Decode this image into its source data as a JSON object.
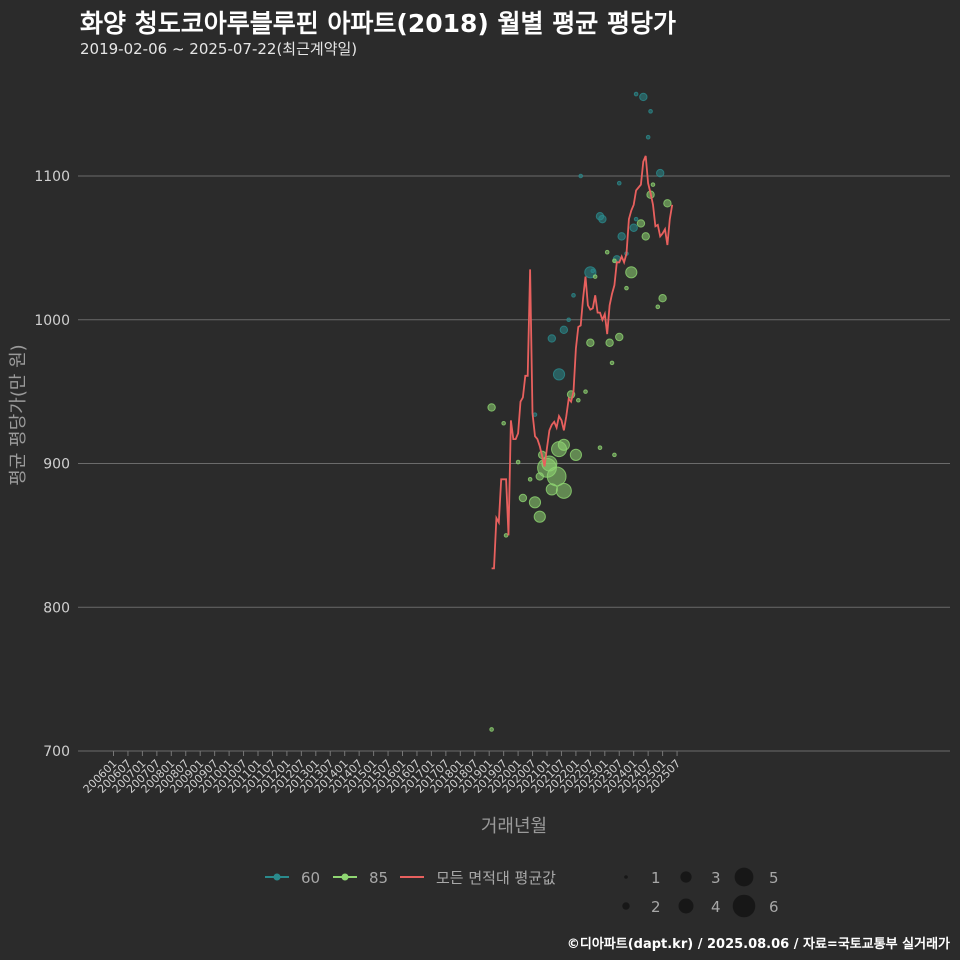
{
  "title": "화양 청도코아루블루핀 아파트(2018) 월별 평균 평당가",
  "subtitle": "2019-02-06 ~ 2025-07-22(최근계약일)",
  "footer": "©디아파트(dapt.kr) / 2025.08.06 / 자료=국토교통부 실거래가",
  "colors": {
    "background": "#2b2b2b",
    "grid": "#6b6b6b",
    "series_60": "#2a8a8c",
    "series_85": "#8fd672",
    "avg_line": "#e8605e"
  },
  "chart_data": {
    "type": "scatter",
    "xlabel": "거래년월",
    "ylabel": "평균 평당가(만 원)",
    "ylim": [
      700,
      1140
    ],
    "yticks": [
      700,
      800,
      900,
      1000,
      1100
    ],
    "x_start": "2006-01",
    "x_end": "2025-09",
    "x_tick_labels": [
      "200601",
      "200607",
      "200701",
      "200707",
      "200801",
      "200807",
      "200901",
      "200907",
      "201001",
      "201007",
      "201101",
      "201107",
      "201201",
      "201207",
      "201301",
      "201307",
      "201401",
      "201407",
      "201501",
      "201507",
      "201601",
      "201607",
      "201701",
      "201707",
      "201801",
      "201807",
      "201901",
      "201907",
      "202001",
      "202007",
      "202101",
      "202107",
      "202201",
      "202207",
      "202301",
      "202307",
      "202401",
      "202407",
      "202501",
      "202507"
    ],
    "legend": {
      "series": [
        {
          "key": "60",
          "label": "60"
        },
        {
          "key": "85",
          "label": "85"
        },
        {
          "key": "avg",
          "label": "모든 면적대 평균값"
        }
      ],
      "size_labels": [
        "1",
        "2",
        "3",
        "4",
        "5",
        "6"
      ]
    },
    "series_line": {
      "name": "모든 면적대 평균값",
      "points": [
        [
          "2019-02",
          827
        ],
        [
          "2019-03",
          827
        ],
        [
          "2019-04",
          862
        ],
        [
          "2019-05",
          859
        ],
        [
          "2019-06",
          889
        ],
        [
          "2019-07",
          889
        ],
        [
          "2019-08",
          889
        ],
        [
          "2019-09",
          850
        ],
        [
          "2019-10",
          930
        ],
        [
          "2019-11",
          917
        ],
        [
          "2019-12",
          917
        ],
        [
          "2020-01",
          921
        ],
        [
          "2020-02",
          943
        ],
        [
          "2020-03",
          946
        ],
        [
          "2020-04",
          961
        ],
        [
          "2020-05",
          961
        ],
        [
          "2020-06",
          1035
        ],
        [
          "2020-07",
          935
        ],
        [
          "2020-08",
          919
        ],
        [
          "2020-09",
          917
        ],
        [
          "2020-10",
          912
        ],
        [
          "2020-11",
          905
        ],
        [
          "2020-12",
          898
        ],
        [
          "2021-01",
          911
        ],
        [
          "2021-02",
          923
        ],
        [
          "2021-03",
          927
        ],
        [
          "2021-04",
          929
        ],
        [
          "2021-05",
          925
        ],
        [
          "2021-06",
          933
        ],
        [
          "2021-07",
          930
        ],
        [
          "2021-08",
          923
        ],
        [
          "2021-09",
          933
        ],
        [
          "2021-10",
          945
        ],
        [
          "2021-11",
          943
        ],
        [
          "2021-12",
          950
        ],
        [
          "2022-01",
          980
        ],
        [
          "2022-02",
          995
        ],
        [
          "2022-03",
          996
        ],
        [
          "2022-04",
          1015
        ],
        [
          "2022-05",
          1030
        ],
        [
          "2022-06",
          1010
        ],
        [
          "2022-07",
          1007
        ],
        [
          "2022-08",
          1008
        ],
        [
          "2022-09",
          1017
        ],
        [
          "2022-10",
          1005
        ],
        [
          "2022-11",
          1005
        ],
        [
          "2022-12",
          1000
        ],
        [
          "2023-01",
          1004
        ],
        [
          "2023-02",
          990
        ],
        [
          "2023-03",
          1010
        ],
        [
          "2023-04",
          1018
        ],
        [
          "2023-05",
          1024
        ],
        [
          "2023-06",
          1040
        ],
        [
          "2023-07",
          1040
        ],
        [
          "2023-08",
          1044
        ],
        [
          "2023-09",
          1040
        ],
        [
          "2023-10",
          1046
        ],
        [
          "2023-11",
          1070
        ],
        [
          "2023-12",
          1076
        ],
        [
          "2024-01",
          1080
        ],
        [
          "2024-02",
          1090
        ],
        [
          "2024-03",
          1092
        ],
        [
          "2024-04",
          1094
        ],
        [
          "2024-05",
          1110
        ],
        [
          "2024-06",
          1114
        ],
        [
          "2024-07",
          1095
        ],
        [
          "2024-08",
          1088
        ],
        [
          "2024-09",
          1080
        ],
        [
          "2024-10",
          1065
        ],
        [
          "2024-11",
          1066
        ],
        [
          "2024-12",
          1058
        ],
        [
          "2025-01",
          1060
        ],
        [
          "2025-02",
          1063
        ],
        [
          "2025-03",
          1052
        ],
        [
          "2025-04",
          1070
        ],
        [
          "2025-05",
          1080
        ]
      ]
    },
    "series_scatter": [
      {
        "name": "60",
        "points": [
          [
            "2020-08",
            934,
            1
          ],
          [
            "2021-03",
            987,
            2
          ],
          [
            "2021-06",
            962,
            3
          ],
          [
            "2021-08",
            993,
            2
          ],
          [
            "2021-10",
            1000,
            1
          ],
          [
            "2021-12",
            1017,
            1
          ],
          [
            "2022-03",
            1100,
            1
          ],
          [
            "2022-07",
            1033,
            3
          ],
          [
            "2022-08",
            1034,
            1
          ],
          [
            "2022-11",
            1072,
            2
          ],
          [
            "2022-12",
            1070,
            2
          ],
          [
            "2023-06",
            1042,
            2
          ],
          [
            "2023-08",
            1058,
            2
          ],
          [
            "2023-10",
            1046,
            1
          ],
          [
            "2024-01",
            1064,
            2
          ],
          [
            "2024-02",
            1070,
            1
          ],
          [
            "2024-05",
            1155,
            2
          ],
          [
            "2024-07",
            1127,
            1
          ],
          [
            "2024-08",
            1145,
            1
          ],
          [
            "2024-12",
            1102,
            2
          ],
          [
            "2024-02",
            1157,
            1
          ],
          [
            "2023-07",
            1095,
            1
          ]
        ]
      },
      {
        "name": "85",
        "points": [
          [
            "2019-02",
            715,
            1
          ],
          [
            "2019-02",
            939,
            2
          ],
          [
            "2019-07",
            928,
            1
          ],
          [
            "2019-08",
            850,
            1
          ],
          [
            "2020-01",
            901,
            1
          ],
          [
            "2020-03",
            876,
            2
          ],
          [
            "2020-06",
            889,
            1
          ],
          [
            "2020-08",
            873,
            3
          ],
          [
            "2020-10",
            891,
            2
          ],
          [
            "2020-10",
            863,
            3
          ],
          [
            "2020-11",
            906,
            2
          ],
          [
            "2021-01",
            897,
            5
          ],
          [
            "2021-02",
            900,
            4
          ],
          [
            "2021-03",
            882,
            3
          ],
          [
            "2021-05",
            891,
            5
          ],
          [
            "2021-06",
            910,
            4
          ],
          [
            "2021-08",
            881,
            4
          ],
          [
            "2021-08",
            913,
            3
          ],
          [
            "2021-11",
            948,
            2
          ],
          [
            "2022-01",
            906,
            3
          ],
          [
            "2022-02",
            944,
            1
          ],
          [
            "2022-05",
            950,
            1
          ],
          [
            "2022-07",
            984,
            2
          ],
          [
            "2022-11",
            911,
            1
          ],
          [
            "2023-03",
            984,
            2
          ],
          [
            "2023-04",
            970,
            1
          ],
          [
            "2023-05",
            906,
            1
          ],
          [
            "2023-05",
            1041,
            1
          ],
          [
            "2023-07",
            988,
            2
          ],
          [
            "2023-10",
            1022,
            1
          ],
          [
            "2023-12",
            1033,
            3
          ],
          [
            "2024-04",
            1067,
            2
          ],
          [
            "2024-06",
            1058,
            2
          ],
          [
            "2024-08",
            1087,
            2
          ],
          [
            "2024-09",
            1094,
            1
          ],
          [
            "2024-11",
            1009,
            1
          ],
          [
            "2025-01",
            1015,
            2
          ],
          [
            "2025-03",
            1081,
            2
          ],
          [
            "2023-02",
            1047,
            1
          ],
          [
            "2022-09",
            1030,
            1
          ]
        ]
      }
    ]
  }
}
